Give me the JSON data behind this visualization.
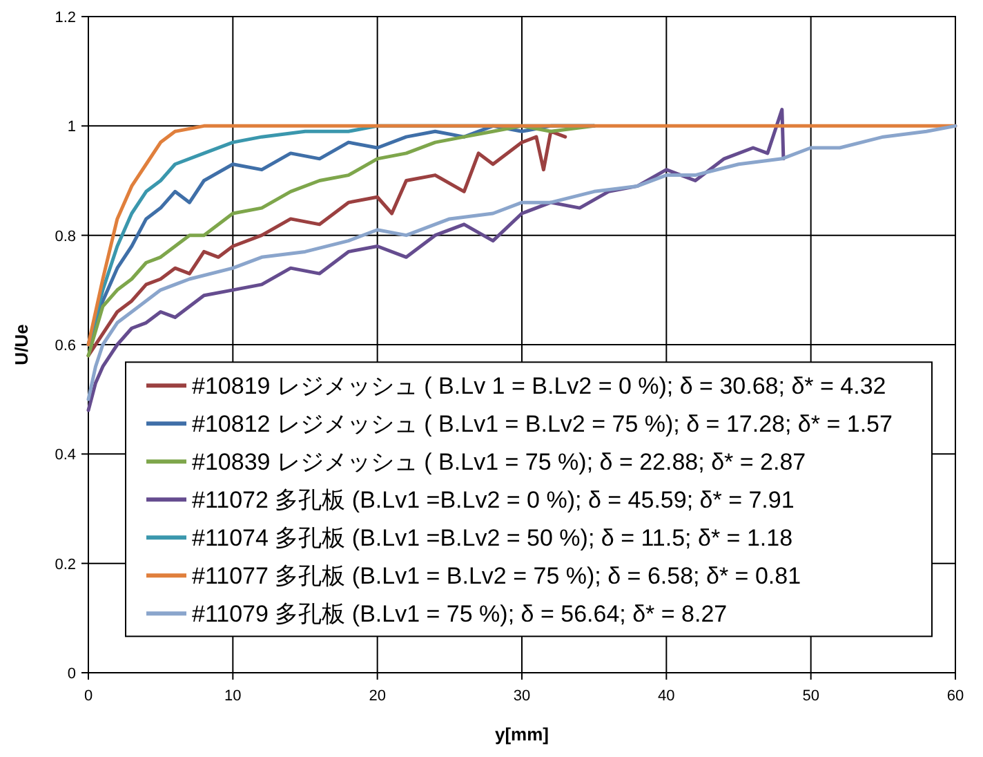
{
  "chart_data": {
    "type": "line",
    "xlabel": "y[mm]",
    "ylabel": "U/Ue",
    "xlim": [
      0,
      60
    ],
    "ylim": [
      0,
      1.2
    ],
    "xticks": [
      0,
      10,
      20,
      30,
      40,
      50,
      60
    ],
    "yticks": [
      0,
      0.2,
      0.4,
      0.6,
      0.8,
      1,
      1.2
    ],
    "grid": true,
    "legend": "left",
    "marker": "none",
    "line_style": "solid",
    "series": [
      {
        "name": "#10819 レジメッシュ ( B.Lv 1 = B.Lv2 = 0 %); δ = 30.68; δ* = 4.32",
        "color": "#9b4040",
        "x": [
          0,
          1,
          2,
          3,
          4,
          5,
          6,
          7,
          8,
          9,
          10,
          12,
          14,
          16,
          18,
          20,
          21,
          22,
          24,
          26,
          27,
          28,
          30,
          31,
          31.5,
          32,
          33
        ],
        "values": [
          0.58,
          0.62,
          0.66,
          0.68,
          0.71,
          0.72,
          0.74,
          0.73,
          0.77,
          0.76,
          0.78,
          0.8,
          0.83,
          0.82,
          0.86,
          0.87,
          0.84,
          0.9,
          0.91,
          0.88,
          0.95,
          0.93,
          0.97,
          0.98,
          0.92,
          0.99,
          0.98
        ]
      },
      {
        "name": "#10812 レジメッシュ ( B.Lv1 = B.Lv2 = 75 %); δ = 17.28; δ* = 1.57",
        "color": "#3f6fa8",
        "x": [
          0,
          1,
          2,
          3,
          4,
          5,
          6,
          7,
          8,
          10,
          12,
          14,
          16,
          18,
          20,
          22,
          24,
          26,
          28,
          30,
          32,
          35
        ],
        "values": [
          0.6,
          0.68,
          0.74,
          0.78,
          0.83,
          0.85,
          0.88,
          0.86,
          0.9,
          0.93,
          0.92,
          0.95,
          0.94,
          0.97,
          0.96,
          0.98,
          0.99,
          0.98,
          1,
          0.99,
          1,
          1
        ]
      },
      {
        "name": "#10839 レジメッシュ ( B.Lv1 = 75 %); δ = 22.88; δ* = 2.87",
        "color": "#7ea64b",
        "x": [
          0,
          1,
          2,
          3,
          4,
          5,
          6,
          7,
          8,
          10,
          12,
          14,
          16,
          18,
          20,
          22,
          24,
          26,
          28,
          30,
          32,
          35
        ],
        "values": [
          0.58,
          0.67,
          0.7,
          0.72,
          0.75,
          0.76,
          0.78,
          0.8,
          0.8,
          0.84,
          0.85,
          0.88,
          0.9,
          0.91,
          0.94,
          0.95,
          0.97,
          0.98,
          0.99,
          1,
          0.99,
          1
        ]
      },
      {
        "name": "#11072 多孔板 (B.Lv1 =B.Lv2 = 0 %); δ = 45.59; δ* = 7.91",
        "color": "#654c8f",
        "x": [
          0,
          0.5,
          1,
          2,
          3,
          4,
          5,
          6,
          8,
          10,
          12,
          14,
          16,
          18,
          20,
          22,
          24,
          26,
          28,
          30,
          32,
          34,
          36,
          38,
          40,
          42,
          44,
          46,
          47,
          48,
          48.1
        ],
        "values": [
          0.48,
          0.53,
          0.56,
          0.6,
          0.63,
          0.64,
          0.66,
          0.65,
          0.69,
          0.7,
          0.71,
          0.74,
          0.73,
          0.77,
          0.78,
          0.76,
          0.8,
          0.82,
          0.79,
          0.84,
          0.86,
          0.85,
          0.88,
          0.89,
          0.92,
          0.9,
          0.94,
          0.96,
          0.95,
          1.03,
          0.94
        ]
      },
      {
        "name": "#11074 多孔板 (B.Lv1 =B.Lv2 = 50 %); δ = 11.5; δ* = 1.18",
        "color": "#3a97ad",
        "x": [
          0,
          1,
          2,
          3,
          4,
          5,
          6,
          8,
          10,
          12,
          15,
          18,
          20,
          25,
          30,
          35
        ],
        "values": [
          0.6,
          0.7,
          0.78,
          0.84,
          0.88,
          0.9,
          0.93,
          0.95,
          0.97,
          0.98,
          0.99,
          0.99,
          1,
          1,
          1,
          1
        ]
      },
      {
        "name": "#11077 多孔板 (B.Lv1 = B.Lv2 = 75 %); δ = 6.58; δ* = 0.81",
        "color": "#e07f3c",
        "x": [
          0,
          1,
          2,
          3,
          4,
          5,
          6,
          8,
          10,
          15,
          20,
          30,
          40,
          50,
          60
        ],
        "values": [
          0.6,
          0.72,
          0.83,
          0.89,
          0.93,
          0.97,
          0.99,
          1,
          1,
          1,
          1,
          1,
          1,
          1,
          1
        ]
      },
      {
        "name": "#11079 多孔板 (B.Lv1 = 75 %); δ = 56.64; δ* = 8.27",
        "color": "#8aa5cc",
        "x": [
          0,
          0.5,
          1,
          2,
          3,
          5,
          7,
          10,
          12,
          15,
          18,
          20,
          22,
          25,
          28,
          30,
          32,
          35,
          38,
          40,
          42,
          45,
          48,
          50,
          52,
          55,
          58,
          60
        ],
        "values": [
          0.5,
          0.56,
          0.6,
          0.64,
          0.66,
          0.7,
          0.72,
          0.74,
          0.76,
          0.77,
          0.79,
          0.81,
          0.8,
          0.83,
          0.84,
          0.86,
          0.86,
          0.88,
          0.89,
          0.91,
          0.91,
          0.93,
          0.94,
          0.96,
          0.96,
          0.98,
          0.99,
          1
        ]
      }
    ]
  }
}
